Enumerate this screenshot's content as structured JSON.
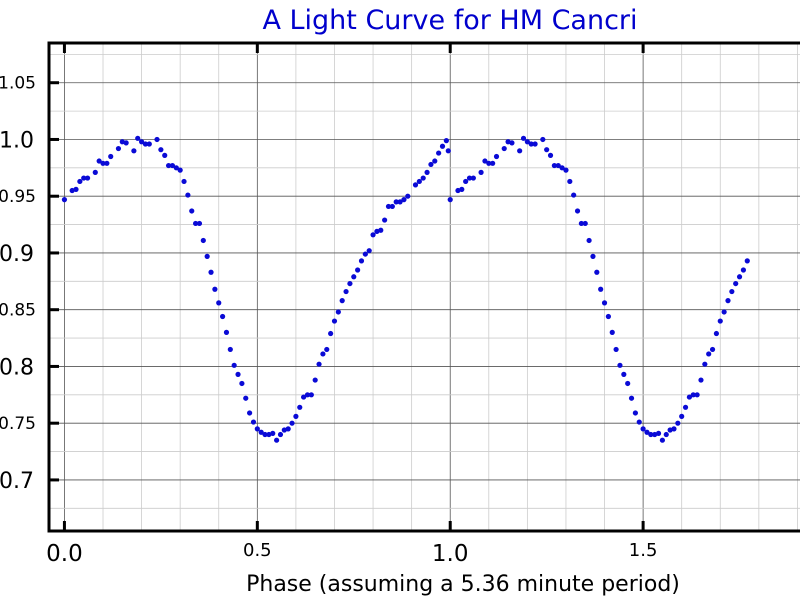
{
  "chart_data": {
    "type": "scatter",
    "title": "A Light Curve for HM Cancri",
    "xlabel": "Phase (assuming a 5.36 minute period)",
    "ylabel": "",
    "xlim": [
      -0.04,
      1.93
    ],
    "ylim": [
      0.655,
      1.085
    ],
    "x_ticks": [
      {
        "value": 0.0,
        "label": "0.0"
      },
      {
        "value": 0.5,
        "label": "0.5"
      },
      {
        "value": 1.0,
        "label": "1.0"
      },
      {
        "value": 1.5,
        "label": "1.5"
      }
    ],
    "y_ticks": [
      {
        "value": 0.7,
        "label": "0.7"
      },
      {
        "value": 0.75,
        "label": "0.75"
      },
      {
        "value": 0.8,
        "label": "0.8"
      },
      {
        "value": 0.85,
        "label": "0.85"
      },
      {
        "value": 0.9,
        "label": "0.9"
      },
      {
        "value": 0.95,
        "label": "0.95"
      },
      {
        "value": 1.0,
        "label": "1.0"
      },
      {
        "value": 1.05,
        "label": "1.05"
      }
    ],
    "grid": true,
    "series": [
      {
        "color": "#0a0ad6",
        "marker": "dot",
        "points": [
          [
            0.0,
            0.947
          ],
          [
            0.02,
            0.955
          ],
          [
            0.03,
            0.956
          ],
          [
            0.04,
            0.963
          ],
          [
            0.05,
            0.966
          ],
          [
            0.06,
            0.966
          ],
          [
            0.08,
            0.971
          ],
          [
            0.09,
            0.981
          ],
          [
            0.1,
            0.979
          ],
          [
            0.11,
            0.979
          ],
          [
            0.12,
            0.985
          ],
          [
            0.14,
            0.992
          ],
          [
            0.15,
            0.998
          ],
          [
            0.16,
            0.997
          ],
          [
            0.18,
            0.99
          ],
          [
            0.19,
            1.001
          ],
          [
            0.2,
            0.998
          ],
          [
            0.21,
            0.996
          ],
          [
            0.22,
            0.996
          ],
          [
            0.24,
            1.0
          ],
          [
            0.25,
            0.991
          ],
          [
            0.26,
            0.986
          ],
          [
            0.27,
            0.977
          ],
          [
            0.28,
            0.977
          ],
          [
            0.29,
            0.975
          ],
          [
            0.3,
            0.973
          ],
          [
            0.31,
            0.963
          ],
          [
            0.32,
            0.951
          ],
          [
            0.33,
            0.937
          ],
          [
            0.34,
            0.926
          ],
          [
            0.35,
            0.926
          ],
          [
            0.36,
            0.911
          ],
          [
            0.37,
            0.897
          ],
          [
            0.38,
            0.883
          ],
          [
            0.39,
            0.868
          ],
          [
            0.4,
            0.856
          ],
          [
            0.41,
            0.844
          ],
          [
            0.42,
            0.83
          ],
          [
            0.43,
            0.815
          ],
          [
            0.44,
            0.801
          ],
          [
            0.45,
            0.793
          ],
          [
            0.46,
            0.785
          ],
          [
            0.47,
            0.772
          ],
          [
            0.48,
            0.759
          ],
          [
            0.49,
            0.751
          ],
          [
            0.5,
            0.745
          ],
          [
            0.51,
            0.742
          ],
          [
            0.52,
            0.74
          ],
          [
            0.53,
            0.74
          ],
          [
            0.54,
            0.741
          ],
          [
            0.55,
            0.735
          ],
          [
            0.56,
            0.74
          ],
          [
            0.57,
            0.744
          ],
          [
            0.58,
            0.745
          ],
          [
            0.59,
            0.75
          ],
          [
            0.6,
            0.756
          ],
          [
            0.61,
            0.764
          ],
          [
            0.62,
            0.773
          ],
          [
            0.63,
            0.775
          ],
          [
            0.64,
            0.775
          ],
          [
            0.65,
            0.788
          ],
          [
            0.66,
            0.802
          ],
          [
            0.67,
            0.811
          ],
          [
            0.68,
            0.815
          ],
          [
            0.69,
            0.829
          ],
          [
            0.7,
            0.84
          ],
          [
            0.71,
            0.848
          ],
          [
            0.72,
            0.858
          ],
          [
            0.73,
            0.866
          ],
          [
            0.74,
            0.873
          ],
          [
            0.75,
            0.879
          ],
          [
            0.76,
            0.885
          ],
          [
            0.77,
            0.893
          ],
          [
            0.78,
            0.899
          ],
          [
            0.79,
            0.902
          ],
          [
            0.8,
            0.916
          ],
          [
            0.81,
            0.919
          ],
          [
            0.82,
            0.92
          ],
          [
            0.83,
            0.929
          ],
          [
            0.84,
            0.941
          ],
          [
            0.85,
            0.941
          ],
          [
            0.86,
            0.945
          ],
          [
            0.87,
            0.945
          ],
          [
            0.88,
            0.947
          ],
          [
            0.89,
            0.95
          ],
          [
            0.91,
            0.96
          ],
          [
            0.92,
            0.963
          ],
          [
            0.93,
            0.966
          ],
          [
            0.94,
            0.971
          ],
          [
            0.95,
            0.978
          ],
          [
            0.96,
            0.981
          ],
          [
            0.97,
            0.988
          ],
          [
            0.98,
            0.994
          ],
          [
            0.99,
            0.999
          ],
          [
            0.995,
            0.99
          ],
          [
            1.0,
            0.947
          ],
          [
            1.02,
            0.955
          ],
          [
            1.03,
            0.956
          ],
          [
            1.04,
            0.963
          ],
          [
            1.05,
            0.966
          ],
          [
            1.06,
            0.966
          ],
          [
            1.08,
            0.971
          ],
          [
            1.09,
            0.981
          ],
          [
            1.1,
            0.979
          ],
          [
            1.11,
            0.979
          ],
          [
            1.12,
            0.985
          ],
          [
            1.14,
            0.992
          ],
          [
            1.15,
            0.998
          ],
          [
            1.16,
            0.997
          ],
          [
            1.18,
            0.99
          ],
          [
            1.19,
            1.001
          ],
          [
            1.2,
            0.998
          ],
          [
            1.21,
            0.996
          ],
          [
            1.22,
            0.996
          ],
          [
            1.24,
            1.0
          ],
          [
            1.25,
            0.991
          ],
          [
            1.26,
            0.986
          ],
          [
            1.27,
            0.977
          ],
          [
            1.28,
            0.977
          ],
          [
            1.29,
            0.975
          ],
          [
            1.3,
            0.973
          ],
          [
            1.31,
            0.963
          ],
          [
            1.32,
            0.951
          ],
          [
            1.33,
            0.937
          ],
          [
            1.34,
            0.926
          ],
          [
            1.35,
            0.926
          ],
          [
            1.36,
            0.911
          ],
          [
            1.37,
            0.897
          ],
          [
            1.38,
            0.883
          ],
          [
            1.39,
            0.868
          ],
          [
            1.4,
            0.856
          ],
          [
            1.41,
            0.844
          ],
          [
            1.42,
            0.83
          ],
          [
            1.43,
            0.815
          ],
          [
            1.44,
            0.801
          ],
          [
            1.45,
            0.793
          ],
          [
            1.46,
            0.785
          ],
          [
            1.47,
            0.772
          ],
          [
            1.48,
            0.759
          ],
          [
            1.49,
            0.751
          ],
          [
            1.5,
            0.745
          ],
          [
            1.51,
            0.742
          ],
          [
            1.52,
            0.74
          ],
          [
            1.53,
            0.74
          ],
          [
            1.54,
            0.741
          ],
          [
            1.55,
            0.735
          ],
          [
            1.56,
            0.74
          ],
          [
            1.57,
            0.744
          ],
          [
            1.58,
            0.745
          ],
          [
            1.59,
            0.75
          ],
          [
            1.6,
            0.756
          ],
          [
            1.61,
            0.764
          ],
          [
            1.62,
            0.773
          ],
          [
            1.63,
            0.775
          ],
          [
            1.64,
            0.775
          ],
          [
            1.65,
            0.788
          ],
          [
            1.66,
            0.802
          ],
          [
            1.67,
            0.811
          ],
          [
            1.68,
            0.815
          ],
          [
            1.69,
            0.829
          ],
          [
            1.7,
            0.84
          ],
          [
            1.71,
            0.848
          ],
          [
            1.72,
            0.858
          ],
          [
            1.73,
            0.866
          ],
          [
            1.74,
            0.873
          ],
          [
            1.75,
            0.879
          ],
          [
            1.76,
            0.885
          ],
          [
            1.77,
            0.893
          ]
        ]
      }
    ]
  }
}
